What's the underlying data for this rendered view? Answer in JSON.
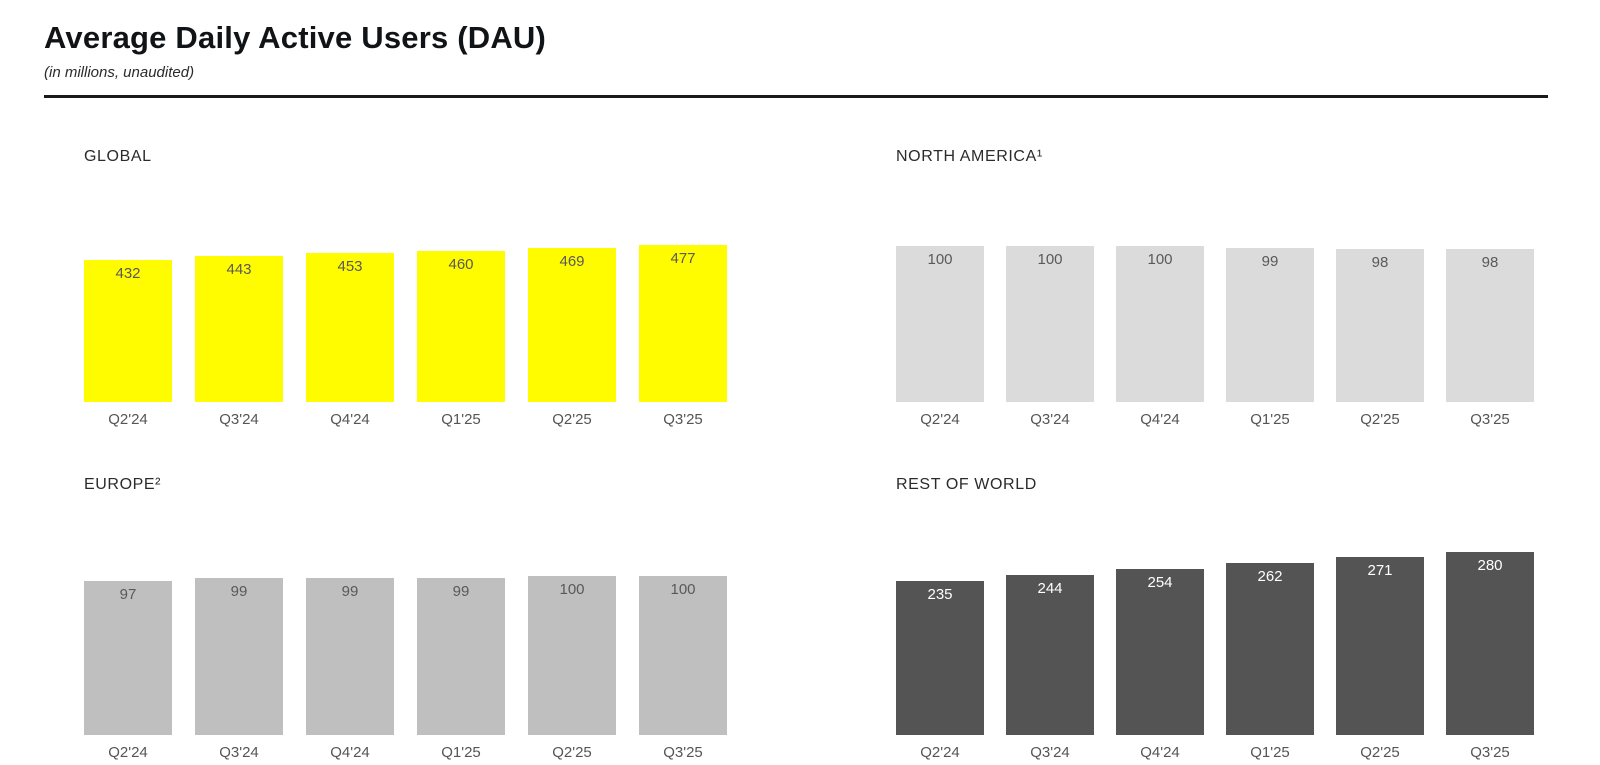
{
  "page": {
    "title": "Average Daily Active Users (DAU)",
    "subtitle": "(in millions, unaudited)"
  },
  "chart_data": [
    {
      "type": "bar",
      "title": "GLOBAL",
      "categories": [
        "Q2'24",
        "Q3'24",
        "Q4'24",
        "Q1'25",
        "Q2'25",
        "Q3'25"
      ],
      "values": [
        432,
        443,
        453,
        460,
        469,
        477
      ],
      "bar_color": "#FFFC00",
      "value_label_color": "#595959",
      "ylim": [
        0,
        477
      ],
      "grid": false,
      "value_labels_position": "inside-top"
    },
    {
      "type": "bar",
      "title": "NORTH AMERICA¹",
      "categories": [
        "Q2'24",
        "Q3'24",
        "Q4'24",
        "Q1'25",
        "Q2'25",
        "Q3'25"
      ],
      "values": [
        100,
        100,
        100,
        99,
        98,
        98
      ],
      "bar_color": "#DBDBDB",
      "value_label_color": "#595959",
      "ylim": [
        0,
        100
      ],
      "grid": false,
      "value_labels_position": "inside-top"
    },
    {
      "type": "bar",
      "title": "EUROPE²",
      "categories": [
        "Q2'24",
        "Q3'24",
        "Q4'24",
        "Q1'25",
        "Q2'25",
        "Q3'25"
      ],
      "values": [
        97,
        99,
        99,
        99,
        100,
        100
      ],
      "bar_color": "#BFBFBF",
      "value_label_color": "#595959",
      "ylim": [
        0,
        100
      ],
      "grid": false,
      "value_labels_position": "inside-top"
    },
    {
      "type": "bar",
      "title": "REST OF WORLD",
      "categories": [
        "Q2'24",
        "Q3'24",
        "Q4'24",
        "Q1'25",
        "Q2'25",
        "Q3'25"
      ],
      "values": [
        235,
        244,
        254,
        262,
        271,
        280
      ],
      "bar_color": "#545454",
      "value_label_color": "#FFFFFF",
      "ylim": [
        0,
        280
      ],
      "grid": false,
      "value_labels_position": "inside-top"
    }
  ]
}
